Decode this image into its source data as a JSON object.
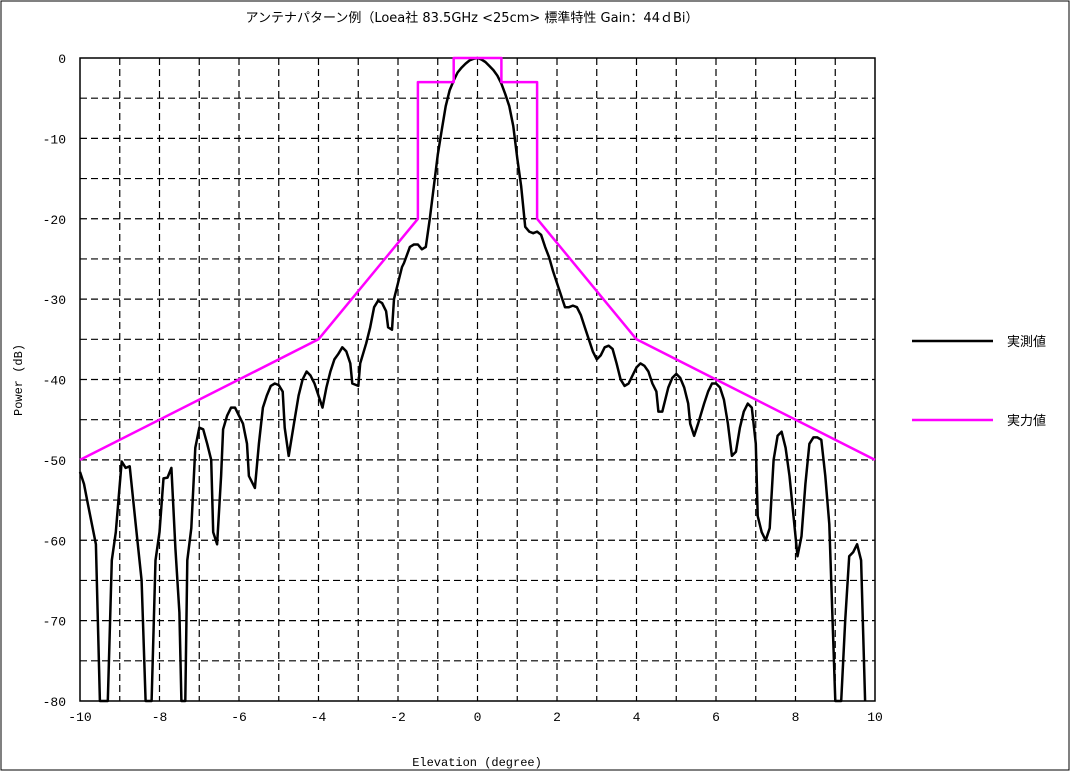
{
  "chart_data": {
    "type": "line",
    "title": "アンテナパターン例（Loea社 83.5GHz <25cm> 標準特性 Gain：44ｄBi）",
    "xlabel": "Elevation (degree)",
    "ylabel": "Power (dB)",
    "xlim": [
      -10,
      10
    ],
    "ylim": [
      -80,
      0
    ],
    "x_ticks": [
      "-10",
      "-8",
      "-6",
      "-4",
      "-2",
      "0",
      "2",
      "4",
      "6",
      "8",
      "10"
    ],
    "y_ticks": [
      "0",
      "-10",
      "-20",
      "-30",
      "-40",
      "-50",
      "-60",
      "-70",
      "-80"
    ],
    "grid": "dashed, every 1 degree and 5 dB",
    "legend_position": "right",
    "series": [
      {
        "name": "実測値",
        "color": "#000000",
        "points": [
          [
            -10.0,
            -51.5
          ],
          [
            -9.9,
            -53.0
          ],
          [
            -9.8,
            -55.5
          ],
          [
            -9.7,
            -58.0
          ],
          [
            -9.6,
            -60.5
          ],
          [
            -9.5,
            -80.0
          ],
          [
            -9.3,
            -80.0
          ],
          [
            -9.2,
            -62.5
          ],
          [
            -9.1,
            -59.0
          ],
          [
            -9.0,
            -53.0
          ],
          [
            -8.95,
            -50.2
          ],
          [
            -8.85,
            -51.0
          ],
          [
            -8.75,
            -50.8
          ],
          [
            -8.6,
            -58.0
          ],
          [
            -8.45,
            -65.0
          ],
          [
            -8.35,
            -80.0
          ],
          [
            -8.2,
            -80.0
          ],
          [
            -8.1,
            -62.5
          ],
          [
            -8.0,
            -59.0
          ],
          [
            -7.9,
            -52.3
          ],
          [
            -7.8,
            -52.2
          ],
          [
            -7.7,
            -51.0
          ],
          [
            -7.6,
            -61.0
          ],
          [
            -7.5,
            -69.0
          ],
          [
            -7.45,
            -80.0
          ],
          [
            -7.35,
            -80.0
          ],
          [
            -7.3,
            -62.5
          ],
          [
            -7.2,
            -58.5
          ],
          [
            -7.1,
            -48.5
          ],
          [
            -7.0,
            -46.0
          ],
          [
            -6.9,
            -46.2
          ],
          [
            -6.8,
            -48.0
          ],
          [
            -6.7,
            -50.0
          ],
          [
            -6.65,
            -59.0
          ],
          [
            -6.55,
            -60.5
          ],
          [
            -6.45,
            -52.0
          ],
          [
            -6.4,
            -46.2
          ],
          [
            -6.3,
            -44.5
          ],
          [
            -6.2,
            -43.5
          ],
          [
            -6.1,
            -43.5
          ],
          [
            -6.0,
            -44.5
          ],
          [
            -5.9,
            -45.5
          ],
          [
            -5.8,
            -48.0
          ],
          [
            -5.75,
            -52.0
          ],
          [
            -5.6,
            -53.5
          ],
          [
            -5.5,
            -48.0
          ],
          [
            -5.4,
            -43.5
          ],
          [
            -5.3,
            -42.0
          ],
          [
            -5.2,
            -40.8
          ],
          [
            -5.1,
            -40.5
          ],
          [
            -5.0,
            -40.7
          ],
          [
            -4.9,
            -41.5
          ],
          [
            -4.85,
            -46.0
          ],
          [
            -4.75,
            -49.5
          ],
          [
            -4.6,
            -45.0
          ],
          [
            -4.5,
            -42.0
          ],
          [
            -4.4,
            -40.0
          ],
          [
            -4.3,
            -39.0
          ],
          [
            -4.2,
            -39.5
          ],
          [
            -4.1,
            -40.5
          ],
          [
            -4.0,
            -42.0
          ],
          [
            -3.9,
            -43.5
          ],
          [
            -3.8,
            -41.0
          ],
          [
            -3.7,
            -39.0
          ],
          [
            -3.6,
            -37.5
          ],
          [
            -3.5,
            -36.8
          ],
          [
            -3.4,
            -36.0
          ],
          [
            -3.3,
            -36.5
          ],
          [
            -3.2,
            -38.0
          ],
          [
            -3.15,
            -40.5
          ],
          [
            -3.0,
            -40.8
          ],
          [
            -2.95,
            -38.0
          ],
          [
            -2.8,
            -35.5
          ],
          [
            -2.7,
            -33.5
          ],
          [
            -2.6,
            -31.0
          ],
          [
            -2.5,
            -30.2
          ],
          [
            -2.4,
            -30.5
          ],
          [
            -2.3,
            -31.5
          ],
          [
            -2.25,
            -33.5
          ],
          [
            -2.15,
            -33.8
          ],
          [
            -2.1,
            -30.0
          ],
          [
            -2.0,
            -28.0
          ],
          [
            -1.9,
            -26.0
          ],
          [
            -1.85,
            -25.5
          ],
          [
            -1.7,
            -23.5
          ],
          [
            -1.6,
            -23.2
          ],
          [
            -1.5,
            -23.2
          ],
          [
            -1.4,
            -23.8
          ],
          [
            -1.3,
            -23.5
          ],
          [
            -1.2,
            -20.0
          ],
          [
            -1.1,
            -16.0
          ],
          [
            -1.0,
            -12.0
          ],
          [
            -0.9,
            -9.0
          ],
          [
            -0.8,
            -6.0
          ],
          [
            -0.7,
            -4.0
          ],
          [
            -0.6,
            -2.8
          ],
          [
            -0.5,
            -1.8
          ],
          [
            -0.4,
            -1.2
          ],
          [
            -0.3,
            -0.7
          ],
          [
            -0.2,
            -0.3
          ],
          [
            -0.1,
            -0.1
          ],
          [
            0.0,
            -0.0
          ],
          [
            0.1,
            -0.2
          ],
          [
            0.2,
            -0.5
          ],
          [
            0.3,
            -1.0
          ],
          [
            0.4,
            -1.5
          ],
          [
            0.5,
            -2.2
          ],
          [
            0.6,
            -3.2
          ],
          [
            0.7,
            -4.5
          ],
          [
            0.8,
            -6.0
          ],
          [
            0.9,
            -8.5
          ],
          [
            1.0,
            -12.5
          ],
          [
            1.1,
            -16.0
          ],
          [
            1.2,
            -21.0
          ],
          [
            1.3,
            -21.6
          ],
          [
            1.4,
            -21.8
          ],
          [
            1.5,
            -21.6
          ],
          [
            1.6,
            -22.0
          ],
          [
            1.7,
            -23.5
          ],
          [
            1.8,
            -24.8
          ],
          [
            1.9,
            -26.5
          ],
          [
            2.0,
            -28.0
          ],
          [
            2.1,
            -29.5
          ],
          [
            2.2,
            -31.0
          ],
          [
            2.3,
            -31.0
          ],
          [
            2.4,
            -30.8
          ],
          [
            2.5,
            -31.0
          ],
          [
            2.6,
            -32.0
          ],
          [
            2.7,
            -33.5
          ],
          [
            2.8,
            -35.0
          ],
          [
            2.9,
            -36.5
          ],
          [
            3.0,
            -37.5
          ],
          [
            3.1,
            -37.0
          ],
          [
            3.2,
            -36.0
          ],
          [
            3.3,
            -35.8
          ],
          [
            3.4,
            -36.2
          ],
          [
            3.5,
            -38.0
          ],
          [
            3.6,
            -40.0
          ],
          [
            3.7,
            -40.8
          ],
          [
            3.8,
            -40.5
          ],
          [
            3.9,
            -39.5
          ],
          [
            4.0,
            -38.5
          ],
          [
            4.1,
            -38.0
          ],
          [
            4.2,
            -38.3
          ],
          [
            4.3,
            -39.0
          ],
          [
            4.4,
            -40.5
          ],
          [
            4.5,
            -41.5
          ],
          [
            4.55,
            -44.0
          ],
          [
            4.65,
            -44.0
          ],
          [
            4.8,
            -41.0
          ],
          [
            4.9,
            -39.8
          ],
          [
            5.0,
            -39.3
          ],
          [
            5.1,
            -39.8
          ],
          [
            5.2,
            -41.0
          ],
          [
            5.3,
            -43.0
          ],
          [
            5.35,
            -45.5
          ],
          [
            5.45,
            -47.0
          ],
          [
            5.55,
            -45.5
          ],
          [
            5.7,
            -43.0
          ],
          [
            5.8,
            -41.5
          ],
          [
            5.9,
            -40.5
          ],
          [
            6.0,
            -40.5
          ],
          [
            6.1,
            -41.0
          ],
          [
            6.2,
            -42.5
          ],
          [
            6.3,
            -45.5
          ],
          [
            6.4,
            -49.5
          ],
          [
            6.5,
            -49.0
          ],
          [
            6.6,
            -46.0
          ],
          [
            6.7,
            -44.0
          ],
          [
            6.8,
            -43.0
          ],
          [
            6.9,
            -43.5
          ],
          [
            7.0,
            -48.0
          ],
          [
            7.05,
            -57.0
          ],
          [
            7.15,
            -59.0
          ],
          [
            7.25,
            -60.0
          ],
          [
            7.35,
            -58.5
          ],
          [
            7.45,
            -50.0
          ],
          [
            7.55,
            -47.0
          ],
          [
            7.65,
            -46.5
          ],
          [
            7.75,
            -48.5
          ],
          [
            7.85,
            -52.0
          ],
          [
            7.95,
            -57.0
          ],
          [
            8.05,
            -62.0
          ],
          [
            8.15,
            -59.5
          ],
          [
            8.25,
            -53.0
          ],
          [
            8.35,
            -48.0
          ],
          [
            8.45,
            -47.2
          ],
          [
            8.55,
            -47.2
          ],
          [
            8.65,
            -47.5
          ],
          [
            8.75,
            -52.0
          ],
          [
            8.85,
            -58.0
          ],
          [
            9.0,
            -80.0
          ],
          [
            9.15,
            -80.0
          ],
          [
            9.25,
            -70.0
          ],
          [
            9.35,
            -62.0
          ],
          [
            9.45,
            -61.5
          ],
          [
            9.55,
            -60.5
          ],
          [
            9.65,
            -62.5
          ],
          [
            9.75,
            -80.0
          ]
        ]
      },
      {
        "name": "実力値",
        "color": "#ff00ff",
        "points": [
          [
            -10.0,
            -50.0
          ],
          [
            -4.0,
            -35.0
          ],
          [
            -1.5,
            -20.0
          ],
          [
            -1.5,
            -3.0
          ],
          [
            -0.6,
            -3.0
          ],
          [
            -0.6,
            0.0
          ],
          [
            0.6,
            0.0
          ],
          [
            0.6,
            -3.0
          ],
          [
            1.5,
            -3.0
          ],
          [
            1.5,
            -20.0
          ],
          [
            4.0,
            -35.0
          ],
          [
            10.0,
            -50.0
          ]
        ]
      }
    ]
  }
}
